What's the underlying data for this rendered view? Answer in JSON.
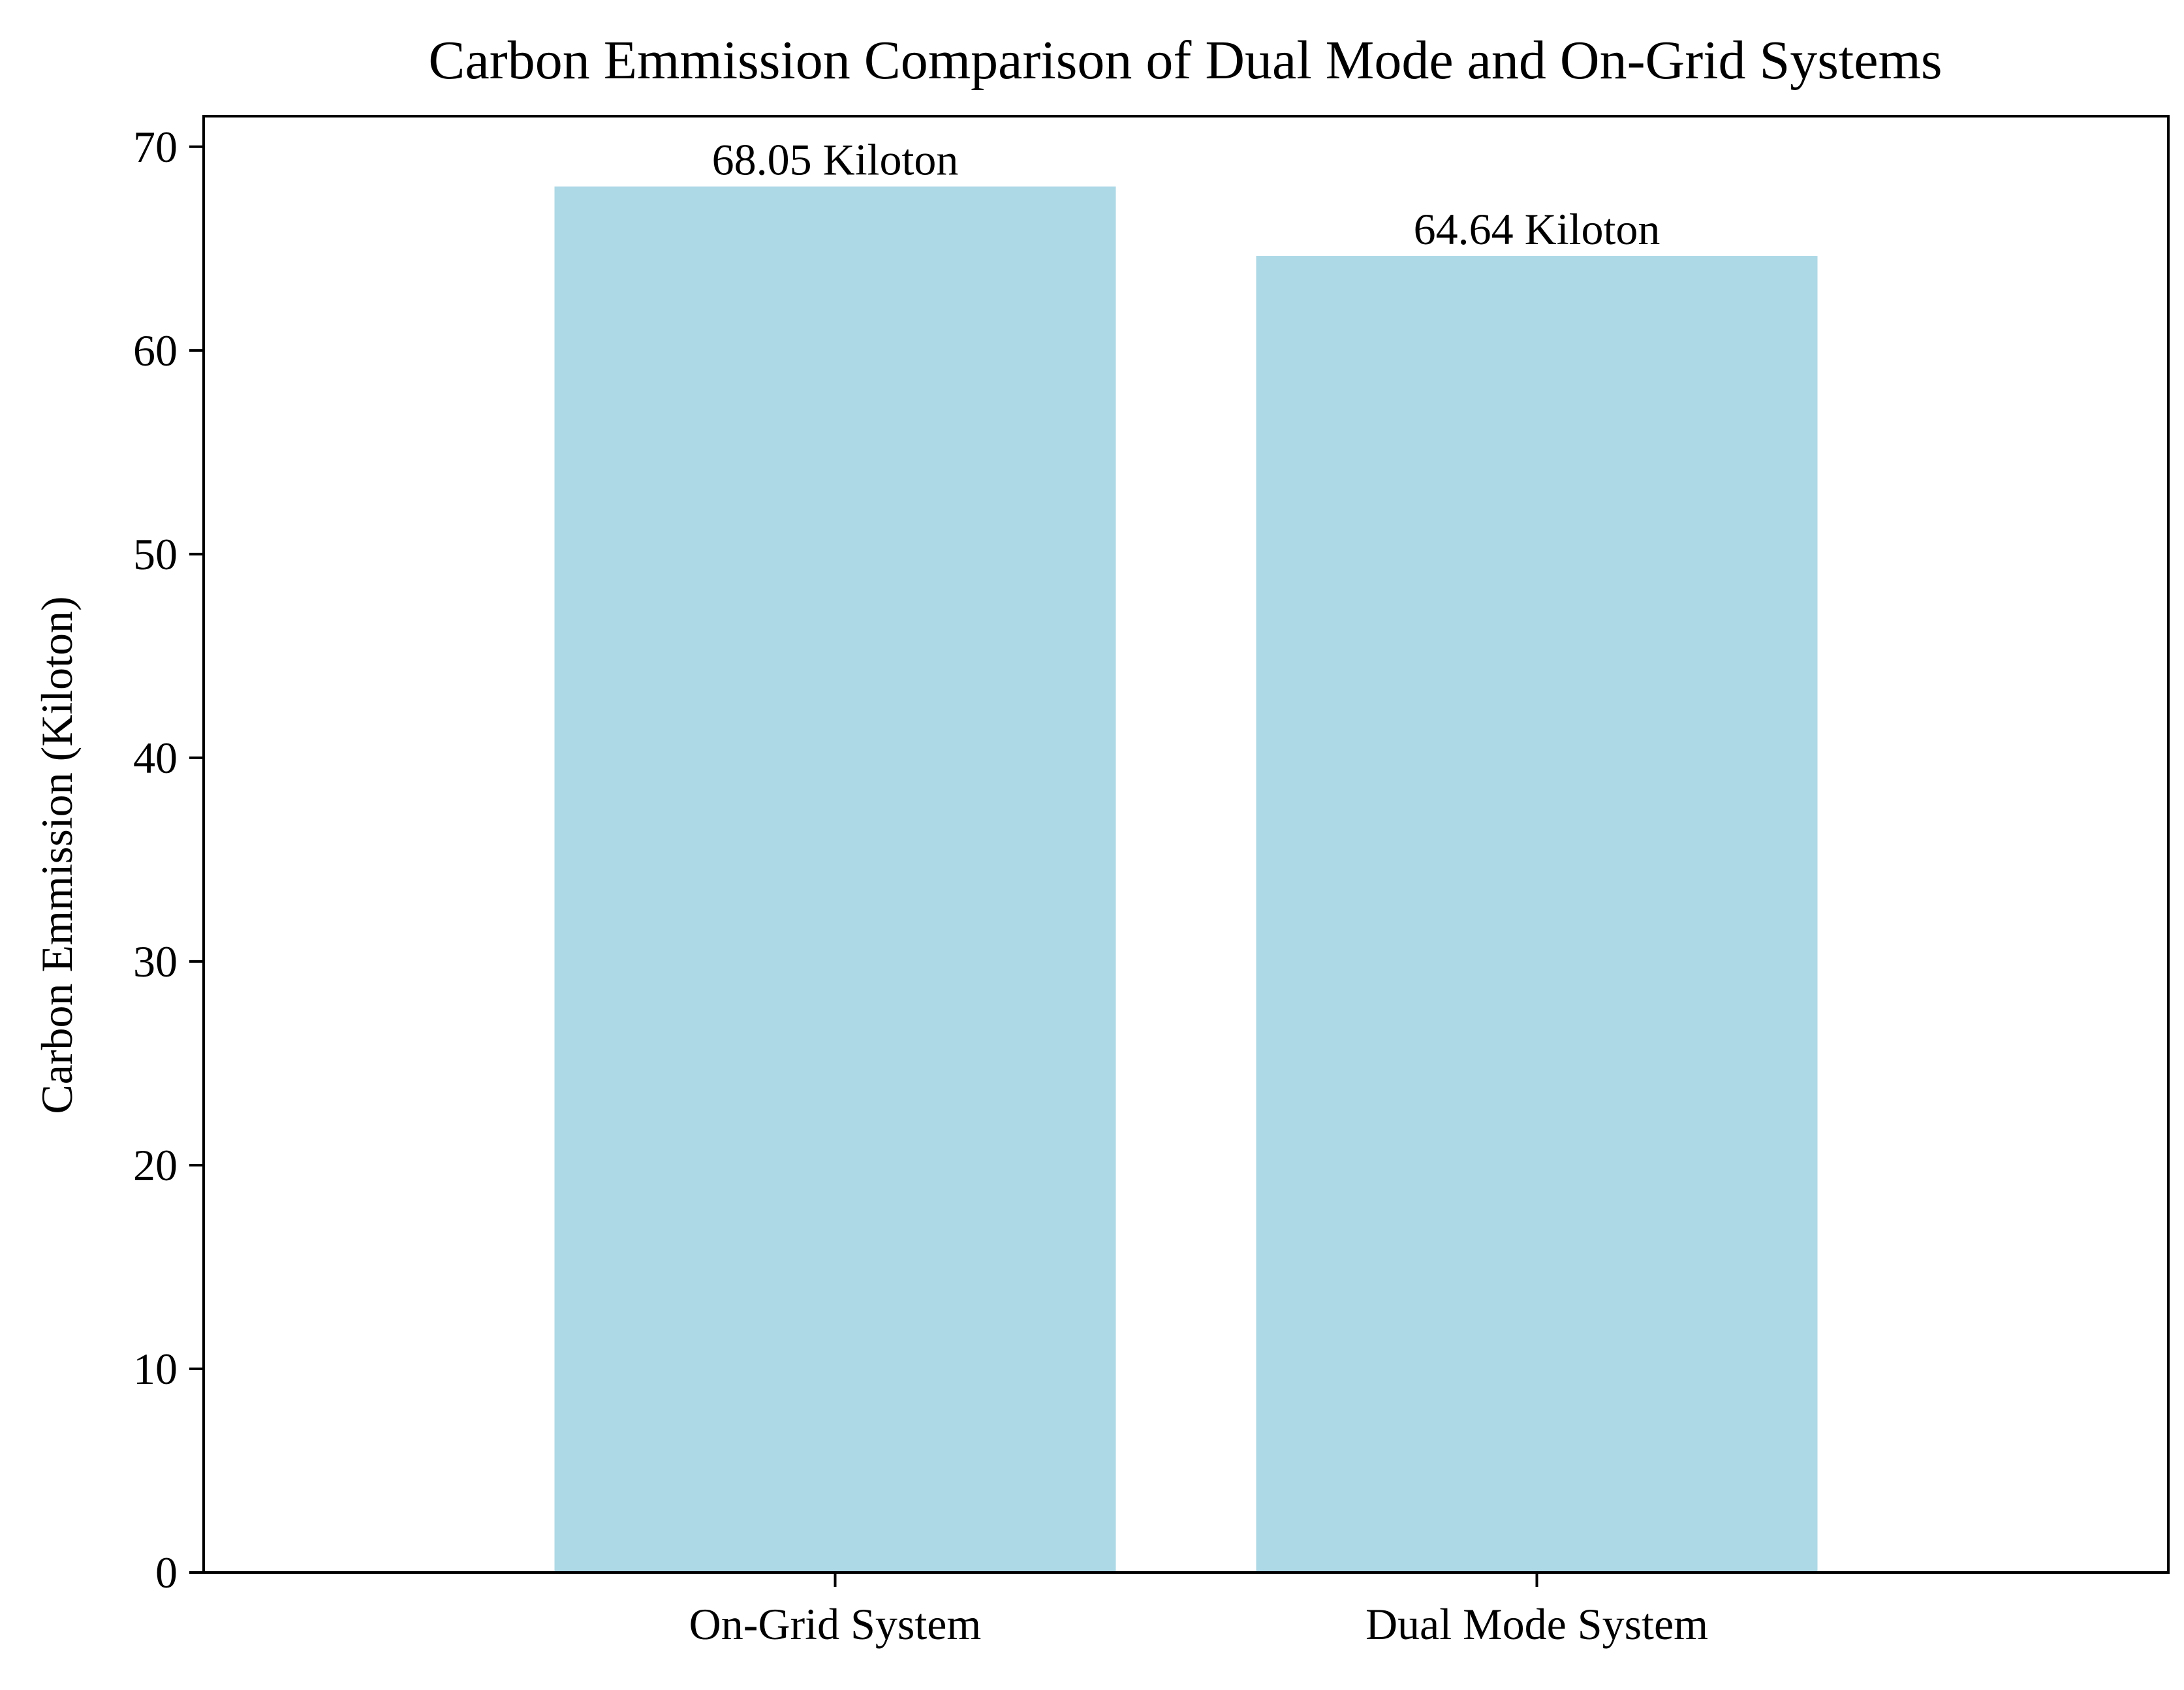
{
  "chart_data": {
    "type": "bar",
    "title": "Carbon Emmission Comparison of Dual Mode and On-Grid Systems",
    "xlabel": "",
    "ylabel": "Carbon Emmission (Kiloton)",
    "categories": [
      "On-Grid System",
      "Dual Mode System"
    ],
    "values": [
      68.05,
      64.64
    ],
    "data_labels": [
      "68.05 Kiloton",
      "64.64 Kiloton"
    ],
    "ylim": [
      0,
      71.5
    ],
    "yticks": [
      0,
      10,
      20,
      30,
      40,
      50,
      60,
      70
    ],
    "grid": false,
    "legend": "none",
    "bar_color": "#add8e6"
  }
}
